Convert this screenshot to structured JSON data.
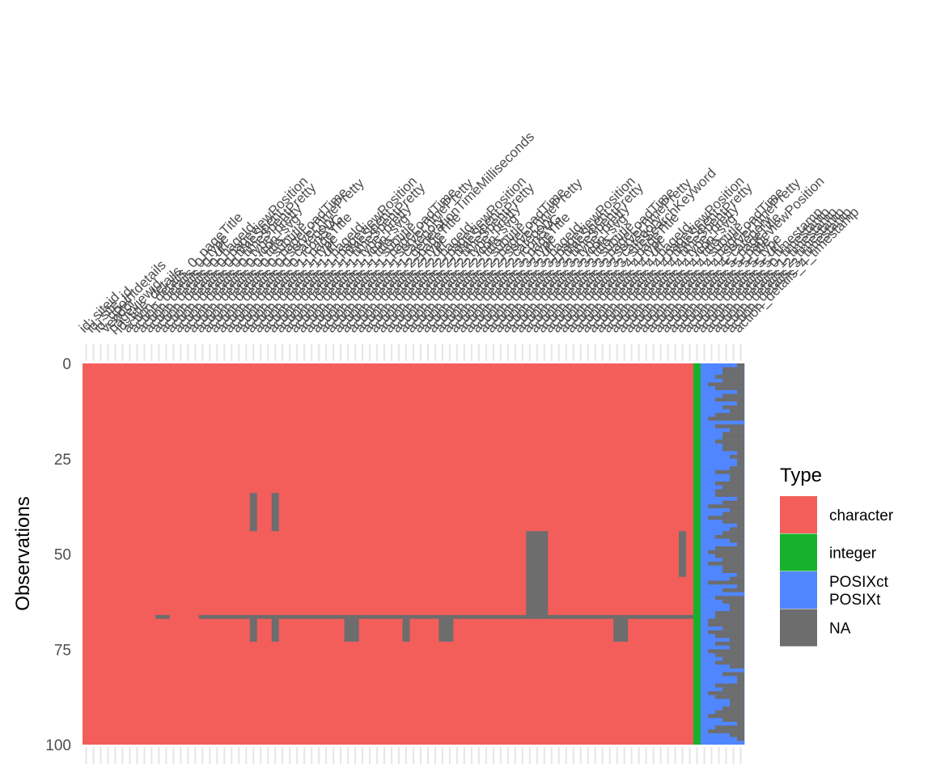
{
  "chart_data": {
    "type": "heatmap",
    "title": "",
    "xlabel": "",
    "ylabel": "Observations",
    "ylim": [
      0,
      100
    ],
    "y_ticks": [
      "0",
      "25",
      "50",
      "75",
      "100"
    ],
    "n_rows": 100,
    "grid": true,
    "legend": {
      "title": "Type",
      "position": "right",
      "entries": [
        {
          "label": "character",
          "color": "#F35E5A"
        },
        {
          "label": "integer",
          "color": "#17B12B"
        },
        {
          "label": "POSIXct\nPOSIXt",
          "color": "#5086FF"
        },
        {
          "label": "NA",
          "color": "#6D6D6D"
        }
      ]
    },
    "columns": [
      "id; siteid",
      "id; site_id",
      "id; gpointdetails",
      "vendor",
      "pageviewid",
      "id; title_details",
      "action_details_0_pageTitle",
      "action_details_0_type",
      "action_details_0_url",
      "action_details_0_pageId",
      "action_details_0_pageviewPosition",
      "action_details_0_timeSpent",
      "action_details_0_timeSpentPretty",
      "action_details_0_type_pretty",
      "action_details_0_icon_svg",
      "action_details_0_title",
      "action_details_0_subtitle",
      "action_details_0_pageLoadTime",
      "action_details_0_serverTimePretty",
      "action_details_0_category",
      "action_details_0_iconSVG",
      "action_details_1_pageTitle",
      "action_details_1_type",
      "action_details_1_url",
      "action_details_1_pageId",
      "action_details_1_pageviewPosition",
      "action_details_1_timeSpent",
      "action_details_1_timeSpentPretty",
      "action_details_1_type_pretty",
      "action_details_1_icon_svg",
      "action_details_1_title",
      "action_details_1_subtitle",
      "action_details_1_pageLoadTime",
      "action_details_1_serverTimePretty",
      "action_details_1_category",
      "action_details_1_generationTimeMilliseconds",
      "action_details_2_pageTitle",
      "action_details_2_type",
      "action_details_2_url",
      "action_details_2_pageId",
      "action_details_2_pageviewPosition",
      "action_details_2_timeSpent",
      "action_details_2_timeSpentPretty",
      "action_details_2_type_pretty",
      "action_details_2_icon_svg",
      "action_details_2_title",
      "action_details_2_subtitle",
      "action_details_2_pageLoadTime",
      "action_details_2_serverTimePretty",
      "action_details_2_category",
      "action_details_2_iconSVG",
      "action_details_3_pageTitle",
      "action_details_3_type",
      "action_details_3_url",
      "action_details_3_pageId",
      "action_details_3_pageviewPosition",
      "action_details_3_timeSpent",
      "action_details_3_timeSpentPretty",
      "action_details_3_type_pretty",
      "action_details_3_icon_svg",
      "action_details_3_title",
      "action_details_3_subtitle",
      "action_details_3_pageLoadTime",
      "action_details_3_serverTimePretty",
      "action_details_3_category",
      "action_details_3_siteSearchKeyword",
      "action_details_4_pageTitle",
      "action_details_4_type",
      "action_details_4_url",
      "action_details_4_pageId",
      "action_details_4_pageviewPosition",
      "action_details_4_timeSpent",
      "action_details_4_timeSpentPretty",
      "action_details_4_type_pretty",
      "action_details_4_icon_svg",
      "action_details_4_title",
      "action_details_4_subtitle",
      "action_details_4_pageLoadTime",
      "action_details_4_serverTimePretty",
      "action_details_4_category",
      "action_details_5_pageTitle",
      "action_details_5_pageviewPosition",
      "action_details_5_title",
      "action_details_5_type",
      "action_details_5_url",
      "action_details_5_timestamp",
      "action_details_0_timestamp",
      "action_details_1_timestamp",
      "action_details_2_timestamp",
      "action_details_3_timestamp",
      "action_details_4_timestamp"
    ],
    "column_types": [
      "character",
      "character",
      "character",
      "character",
      "character",
      "character",
      "character",
      "character",
      "character",
      "character",
      "character",
      "character",
      "character",
      "character",
      "character",
      "character",
      "character",
      "character",
      "character",
      "character",
      "character",
      "character",
      "character",
      "character",
      "character",
      "character",
      "character",
      "character",
      "character",
      "character",
      "character",
      "character",
      "character",
      "character",
      "character",
      "character",
      "character",
      "character",
      "character",
      "character",
      "character",
      "character",
      "character",
      "character",
      "character",
      "character",
      "character",
      "character",
      "character",
      "character",
      "character",
      "character",
      "character",
      "character",
      "character",
      "character",
      "character",
      "character",
      "character",
      "character",
      "character",
      "character",
      "character",
      "character",
      "character",
      "character",
      "character",
      "character",
      "character",
      "character",
      "character",
      "character",
      "character",
      "character",
      "character",
      "character",
      "character",
      "character",
      "character",
      "character",
      "character",
      "character",
      "character",
      "character",
      "integer",
      "POSIXct\nPOSIXt",
      "POSIXct\nPOSIXt",
      "POSIXct\nPOSIXt",
      "POSIXct\nPOSIXt",
      "POSIXct\nPOSIXt",
      "POSIXct\nPOSIXt"
    ],
    "missing_blocks": [
      {
        "cols": [
          23,
          23
        ],
        "rows": [
          34,
          43
        ]
      },
      {
        "cols": [
          26,
          26
        ],
        "rows": [
          34,
          43
        ]
      },
      {
        "cols": [
          61,
          63
        ],
        "rows": [
          44,
          66
        ]
      },
      {
        "cols": [
          82,
          82
        ],
        "rows": [
          44,
          55
        ]
      },
      {
        "cols": [
          10,
          11
        ],
        "rows": [
          66,
          66
        ]
      },
      {
        "cols": [
          16,
          83
        ],
        "rows": [
          66,
          66
        ]
      },
      {
        "cols": [
          23,
          23
        ],
        "rows": [
          67,
          72
        ]
      },
      {
        "cols": [
          26,
          26
        ],
        "rows": [
          67,
          72
        ]
      },
      {
        "cols": [
          36,
          37
        ],
        "rows": [
          67,
          72
        ]
      },
      {
        "cols": [
          44,
          44
        ],
        "rows": [
          67,
          72
        ]
      },
      {
        "cols": [
          49,
          50
        ],
        "rows": [
          67,
          72
        ]
      },
      {
        "cols": [
          73,
          74
        ],
        "rows": [
          67,
          72
        ]
      }
    ],
    "timestamp_missing": {
      "start_col": 86,
      "counts": [
        1,
        3,
        3,
        4,
        3,
        5,
        4,
        1,
        3,
        4,
        1,
        3,
        2,
        4,
        5,
        0,
        4,
        2,
        3,
        3,
        4,
        3,
        3,
        1,
        2,
        1,
        1,
        2,
        4,
        2,
        2,
        4,
        3,
        4,
        4,
        1,
        3,
        5,
        2,
        3,
        5,
        3,
        1,
        2,
        3,
        4,
        2,
        1,
        4,
        5,
        4,
        3,
        5,
        3,
        3,
        1,
        2,
        5,
        1,
        3,
        0,
        4,
        3,
        2,
        2,
        4,
        4,
        5,
        5,
        3,
        5,
        4,
        2,
        4,
        2,
        5,
        4,
        3,
        4,
        2,
        0,
        3,
        1,
        1,
        4,
        3,
        5,
        4,
        2,
        2,
        3,
        4,
        5,
        3,
        1,
        4,
        5,
        2,
        1,
        0
      ]
    }
  }
}
